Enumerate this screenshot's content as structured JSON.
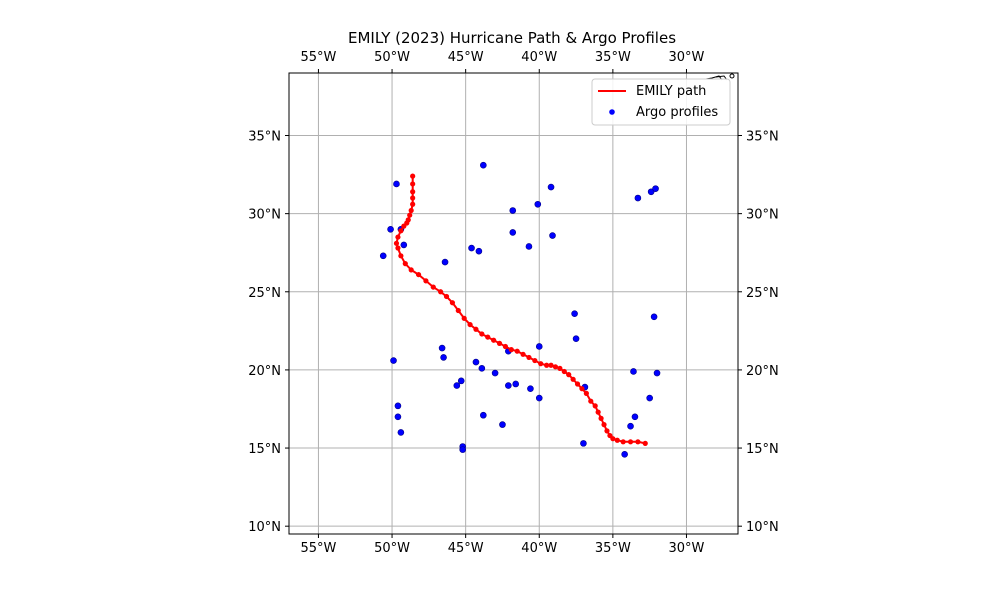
{
  "chart_data": {
    "type": "scatter",
    "title": "EMILY (2023) Hurricane Path & Argo Profiles",
    "xlim": [
      -57.0,
      -26.5
    ],
    "ylim": [
      9.5,
      39.0
    ],
    "grid": true,
    "legend_position": "top-right",
    "colors": {
      "path": "#ff0000",
      "profiles": "#0000ff",
      "grid": "#b0b0b0"
    },
    "x_ticks": [
      {
        "value": -55,
        "label": "55°W"
      },
      {
        "value": -50,
        "label": "50°W"
      },
      {
        "value": -45,
        "label": "45°W"
      },
      {
        "value": -40,
        "label": "40°W"
      },
      {
        "value": -35,
        "label": "35°W"
      },
      {
        "value": -30,
        "label": "30°W"
      }
    ],
    "y_ticks": [
      {
        "value": 10,
        "label": "10°N"
      },
      {
        "value": 15,
        "label": "15°N"
      },
      {
        "value": 20,
        "label": "20°N"
      },
      {
        "value": 25,
        "label": "25°N"
      },
      {
        "value": 30,
        "label": "30°N"
      },
      {
        "value": 35,
        "label": "35°N"
      }
    ],
    "series": [
      {
        "name": "EMILY path",
        "kind": "line-with-markers",
        "points": [
          [
            -32.8,
            15.3
          ],
          [
            -33.3,
            15.4
          ],
          [
            -33.8,
            15.4
          ],
          [
            -34.3,
            15.4
          ],
          [
            -34.7,
            15.5
          ],
          [
            -35.0,
            15.6
          ],
          [
            -35.2,
            15.8
          ],
          [
            -35.4,
            16.1
          ],
          [
            -35.6,
            16.5
          ],
          [
            -35.8,
            16.9
          ],
          [
            -36.0,
            17.3
          ],
          [
            -36.2,
            17.7
          ],
          [
            -36.5,
            18.0
          ],
          [
            -36.8,
            18.5
          ],
          [
            -37.1,
            18.8
          ],
          [
            -37.4,
            19.1
          ],
          [
            -37.7,
            19.4
          ],
          [
            -38.0,
            19.7
          ],
          [
            -38.3,
            19.9
          ],
          [
            -38.6,
            20.1
          ],
          [
            -38.9,
            20.2
          ],
          [
            -39.2,
            20.3
          ],
          [
            -39.5,
            20.3
          ],
          [
            -39.9,
            20.4
          ],
          [
            -40.3,
            20.6
          ],
          [
            -40.7,
            20.8
          ],
          [
            -41.1,
            21.0
          ],
          [
            -41.5,
            21.2
          ],
          [
            -41.9,
            21.3
          ],
          [
            -42.3,
            21.5
          ],
          [
            -42.7,
            21.7
          ],
          [
            -43.1,
            21.9
          ],
          [
            -43.5,
            22.1
          ],
          [
            -43.9,
            22.3
          ],
          [
            -44.3,
            22.6
          ],
          [
            -44.7,
            22.9
          ],
          [
            -45.1,
            23.3
          ],
          [
            -45.5,
            23.8
          ],
          [
            -45.9,
            24.3
          ],
          [
            -46.3,
            24.7
          ],
          [
            -46.7,
            25.0
          ],
          [
            -47.2,
            25.3
          ],
          [
            -47.7,
            25.7
          ],
          [
            -48.2,
            26.1
          ],
          [
            -48.7,
            26.4
          ],
          [
            -49.1,
            26.8
          ],
          [
            -49.4,
            27.3
          ],
          [
            -49.6,
            27.8
          ],
          [
            -49.7,
            28.1
          ],
          [
            -49.6,
            28.5
          ],
          [
            -49.4,
            28.9
          ],
          [
            -49.2,
            29.2
          ],
          [
            -49.0,
            29.4
          ],
          [
            -48.9,
            29.6
          ],
          [
            -48.8,
            29.9
          ],
          [
            -48.7,
            30.2
          ],
          [
            -48.6,
            30.6
          ],
          [
            -48.6,
            31.0
          ],
          [
            -48.6,
            31.4
          ],
          [
            -48.6,
            31.9
          ],
          [
            -48.6,
            32.4
          ]
        ]
      },
      {
        "name": "Argo profiles",
        "kind": "scatter",
        "points": [
          [
            -49.7,
            31.9
          ],
          [
            -43.8,
            33.1
          ],
          [
            -39.2,
            31.7
          ],
          [
            -33.3,
            31.0
          ],
          [
            -32.4,
            31.4
          ],
          [
            -32.1,
            31.6
          ],
          [
            -41.8,
            30.2
          ],
          [
            -40.1,
            30.6
          ],
          [
            -50.1,
            29.0
          ],
          [
            -49.4,
            29.0
          ],
          [
            -49.2,
            28.0
          ],
          [
            -41.8,
            28.8
          ],
          [
            -39.1,
            28.6
          ],
          [
            -44.6,
            27.8
          ],
          [
            -44.1,
            27.6
          ],
          [
            -40.7,
            27.9
          ],
          [
            -50.6,
            27.3
          ],
          [
            -46.4,
            26.9
          ],
          [
            -37.6,
            23.6
          ],
          [
            -32.2,
            23.4
          ],
          [
            -37.5,
            22.0
          ],
          [
            -46.6,
            21.4
          ],
          [
            -40.0,
            21.5
          ],
          [
            -42.1,
            21.2
          ],
          [
            -46.5,
            20.8
          ],
          [
            -49.9,
            20.6
          ],
          [
            -44.3,
            20.5
          ],
          [
            -43.9,
            20.1
          ],
          [
            -43.0,
            19.8
          ],
          [
            -33.6,
            19.9
          ],
          [
            -32.0,
            19.8
          ],
          [
            -45.3,
            19.3
          ],
          [
            -45.6,
            19.0
          ],
          [
            -42.1,
            19.0
          ],
          [
            -41.6,
            19.1
          ],
          [
            -40.6,
            18.8
          ],
          [
            -36.9,
            18.9
          ],
          [
            -40.0,
            18.2
          ],
          [
            -32.5,
            18.2
          ],
          [
            -49.6,
            17.7
          ],
          [
            -49.6,
            17.0
          ],
          [
            -43.8,
            17.1
          ],
          [
            -33.5,
            17.0
          ],
          [
            -42.5,
            16.5
          ],
          [
            -33.8,
            16.4
          ],
          [
            -49.4,
            16.0
          ],
          [
            -37.0,
            15.3
          ],
          [
            -45.2,
            15.1
          ],
          [
            -45.2,
            14.9
          ],
          [
            -34.2,
            14.6
          ]
        ]
      }
    ]
  }
}
